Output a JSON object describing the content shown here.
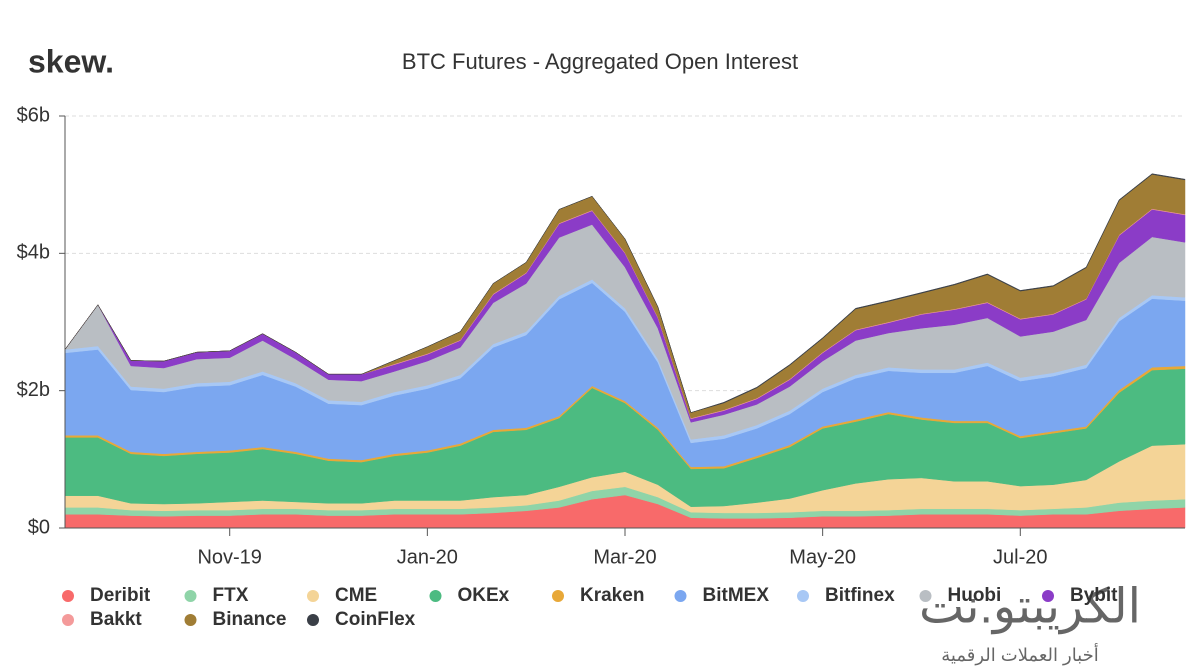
{
  "logo": "skew.",
  "watermark": {
    "name": "الكريبتو.نت",
    "tagline": "أخبار العملات الرقمية"
  },
  "chart_data": {
    "type": "stacked-area",
    "title": "BTC Futures - Aggregated Open Interest",
    "categories": [
      null,
      null,
      null,
      null,
      null,
      "Nov-19",
      null,
      null,
      null,
      null,
      null,
      "Jan-20",
      null,
      null,
      null,
      null,
      null,
      "Mar-20",
      null,
      null,
      null,
      null,
      null,
      "May-20",
      null,
      null,
      null,
      null,
      null,
      "Jul-20",
      null,
      null,
      null,
      null,
      null
    ],
    "ylim": [
      0,
      6
    ],
    "yticks": [
      {
        "value": 0,
        "label": "$0"
      },
      {
        "value": 2,
        "label": "$2b"
      },
      {
        "value": 4,
        "label": "$4b"
      },
      {
        "value": 6,
        "label": "$6b"
      }
    ],
    "grid": true,
    "legend": "bottom",
    "series": [
      {
        "name": "Deribit",
        "color": "#f86a6a",
        "values": [
          0.2,
          0.2,
          0.18,
          0.17,
          0.18,
          0.18,
          0.2,
          0.2,
          0.18,
          0.18,
          0.2,
          0.2,
          0.2,
          0.22,
          0.25,
          0.3,
          0.42,
          0.48,
          0.35,
          0.15,
          0.14,
          0.14,
          0.15,
          0.17,
          0.17,
          0.18,
          0.2,
          0.2,
          0.2,
          0.18,
          0.2,
          0.2,
          0.25,
          0.28,
          0.3
        ]
      },
      {
        "name": "FTX",
        "color": "#8fd4a8",
        "values": [
          0.1,
          0.1,
          0.08,
          0.08,
          0.08,
          0.08,
          0.08,
          0.08,
          0.08,
          0.08,
          0.08,
          0.08,
          0.08,
          0.08,
          0.08,
          0.1,
          0.12,
          0.12,
          0.1,
          0.08,
          0.08,
          0.08,
          0.08,
          0.08,
          0.08,
          0.08,
          0.08,
          0.08,
          0.08,
          0.08,
          0.08,
          0.1,
          0.12,
          0.12,
          0.12
        ]
      },
      {
        "name": "CME",
        "color": "#f4d497",
        "values": [
          0.17,
          0.17,
          0.1,
          0.1,
          0.1,
          0.12,
          0.12,
          0.1,
          0.1,
          0.1,
          0.12,
          0.12,
          0.12,
          0.15,
          0.15,
          0.2,
          0.2,
          0.22,
          0.18,
          0.08,
          0.1,
          0.15,
          0.2,
          0.3,
          0.4,
          0.45,
          0.45,
          0.4,
          0.4,
          0.35,
          0.35,
          0.4,
          0.6,
          0.8,
          0.8
        ]
      },
      {
        "name": "OKEx",
        "color": "#4cbb81",
        "values": [
          0.85,
          0.85,
          0.72,
          0.7,
          0.72,
          0.72,
          0.75,
          0.7,
          0.62,
          0.6,
          0.65,
          0.7,
          0.8,
          0.95,
          0.95,
          1.0,
          1.3,
          1.0,
          0.8,
          0.55,
          0.55,
          0.65,
          0.75,
          0.9,
          0.9,
          0.95,
          0.85,
          0.85,
          0.85,
          0.7,
          0.75,
          0.75,
          1.0,
          1.1,
          1.1
        ]
      },
      {
        "name": "Kraken",
        "color": "#e8a838",
        "values": [
          0.03,
          0.03,
          0.03,
          0.03,
          0.03,
          0.03,
          0.03,
          0.03,
          0.03,
          0.03,
          0.03,
          0.03,
          0.03,
          0.03,
          0.03,
          0.03,
          0.03,
          0.03,
          0.03,
          0.03,
          0.03,
          0.03,
          0.03,
          0.03,
          0.03,
          0.03,
          0.03,
          0.03,
          0.03,
          0.03,
          0.03,
          0.03,
          0.04,
          0.04,
          0.04
        ]
      },
      {
        "name": "BitMEX",
        "color": "#7ba7f0",
        "values": [
          1.2,
          1.25,
          0.9,
          0.9,
          0.95,
          0.95,
          1.05,
          0.95,
          0.8,
          0.8,
          0.85,
          0.9,
          0.95,
          1.2,
          1.35,
          1.7,
          1.5,
          1.3,
          0.95,
          0.35,
          0.4,
          0.4,
          0.45,
          0.5,
          0.6,
          0.6,
          0.65,
          0.7,
          0.8,
          0.8,
          0.8,
          0.85,
          1.0,
          1.0,
          0.95
        ]
      },
      {
        "name": "Bitfinex",
        "color": "#a8c8f5",
        "values": [
          0.05,
          0.05,
          0.05,
          0.05,
          0.05,
          0.05,
          0.05,
          0.05,
          0.05,
          0.05,
          0.05,
          0.05,
          0.05,
          0.05,
          0.05,
          0.05,
          0.05,
          0.05,
          0.05,
          0.05,
          0.05,
          0.05,
          0.05,
          0.05,
          0.05,
          0.05,
          0.05,
          0.05,
          0.05,
          0.05,
          0.05,
          0.05,
          0.05,
          0.05,
          0.05
        ]
      },
      {
        "name": "Huobi",
        "color": "#b9bec3",
        "values": [
          0,
          0.6,
          0.3,
          0.3,
          0.35,
          0.35,
          0.45,
          0.35,
          0.3,
          0.3,
          0.3,
          0.35,
          0.4,
          0.6,
          0.7,
          0.85,
          0.8,
          0.6,
          0.45,
          0.25,
          0.3,
          0.3,
          0.35,
          0.4,
          0.5,
          0.5,
          0.6,
          0.65,
          0.65,
          0.6,
          0.6,
          0.65,
          0.8,
          0.85,
          0.8
        ]
      },
      {
        "name": "Bybit",
        "color": "#8b3cc7",
        "values": [
          0,
          0,
          0.08,
          0.1,
          0.1,
          0.1,
          0.1,
          0.1,
          0.08,
          0.1,
          0.1,
          0.1,
          0.1,
          0.12,
          0.15,
          0.2,
          0.2,
          0.2,
          0.15,
          0.05,
          0.06,
          0.08,
          0.1,
          0.12,
          0.15,
          0.15,
          0.2,
          0.22,
          0.22,
          0.25,
          0.25,
          0.3,
          0.4,
          0.4,
          0.4
        ]
      },
      {
        "name": "Bakkt",
        "color": "#f49a9a",
        "values": [
          0,
          0,
          0,
          0,
          0,
          0,
          0,
          0,
          0,
          0,
          0.01,
          0.01,
          0.01,
          0.01,
          0.01,
          0.01,
          0.01,
          0.01,
          0.01,
          0.01,
          0.01,
          0.01,
          0.01,
          0.01,
          0.01,
          0.01,
          0.01,
          0.01,
          0.01,
          0.01,
          0.01,
          0.01,
          0.01,
          0.01,
          0.01
        ]
      },
      {
        "name": "Binance",
        "color": "#a07d35",
        "values": [
          0,
          0,
          0,
          0,
          0,
          0,
          0,
          0,
          0,
          0,
          0.05,
          0.1,
          0.12,
          0.15,
          0.15,
          0.2,
          0.2,
          0.2,
          0.15,
          0.08,
          0.1,
          0.15,
          0.2,
          0.2,
          0.3,
          0.3,
          0.3,
          0.35,
          0.4,
          0.4,
          0.4,
          0.45,
          0.5,
          0.5,
          0.5
        ]
      },
      {
        "name": "CoinFlex",
        "color": "#3a3f47",
        "values": [
          0,
          0,
          0,
          0,
          0,
          0,
          0,
          0,
          0,
          0,
          0,
          0,
          0,
          0,
          0,
          0,
          0,
          0,
          0,
          0,
          0.01,
          0.01,
          0.01,
          0.01,
          0.01,
          0.01,
          0.01,
          0.01,
          0.01,
          0.01,
          0.01,
          0.01,
          0.01,
          0.01,
          0.01
        ]
      }
    ]
  }
}
